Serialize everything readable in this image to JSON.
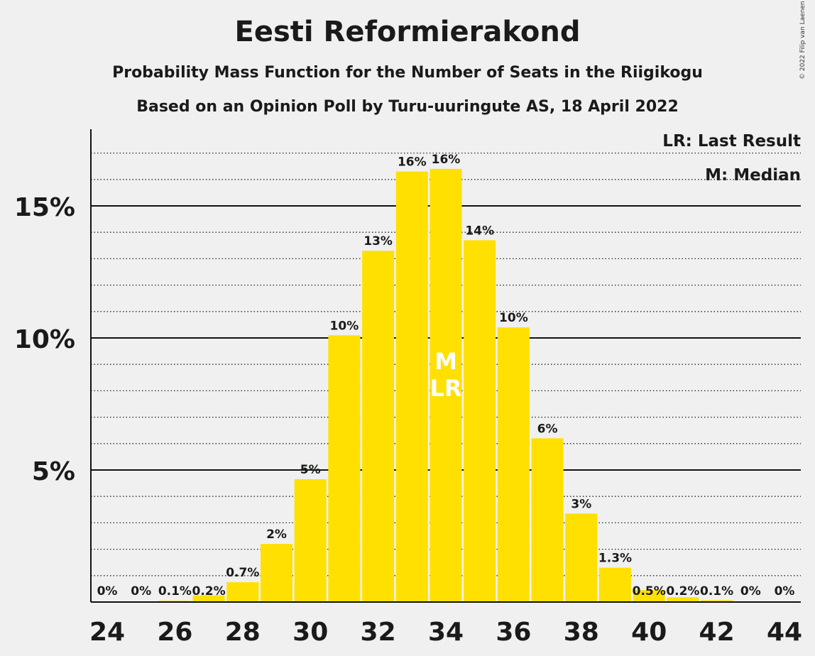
{
  "title": "Eesti Reformierakond",
  "subtitle": "Probability Mass Function for the Number of Seats in the Riigikogu",
  "source": "Based on an Opinion Poll by Turu-uuringute AS, 18 April 2022",
  "copyright": "© 2022 Filip van Laenen",
  "legend": {
    "last_result": "LR: Last Result",
    "median": "M: Median"
  },
  "colors": {
    "bar": "#FFE000",
    "axis": "#1a1a1a",
    "background": "#f0f0f0"
  },
  "chart_data": {
    "type": "bar",
    "x": [
      24,
      25,
      26,
      27,
      28,
      29,
      30,
      31,
      32,
      33,
      34,
      35,
      36,
      37,
      38,
      39,
      40,
      41,
      42,
      43,
      44
    ],
    "values": [
      0,
      0,
      0.05,
      0.25,
      0.75,
      2.2,
      4.65,
      10.1,
      13.3,
      16.3,
      16.4,
      13.7,
      10.4,
      6.2,
      3.35,
      1.3,
      0.45,
      0.18,
      0.07,
      0,
      0
    ],
    "data_labels": [
      "0%",
      "0%",
      "0.1%",
      "0.2%",
      "0.7%",
      "2%",
      "5%",
      "10%",
      "13%",
      "16%",
      "16%",
      "14%",
      "10%",
      "6%",
      "3%",
      "1.3%",
      "0.5%",
      "0.2%",
      "0.1%",
      "0%",
      "0%"
    ],
    "x_ticks": [
      24,
      26,
      28,
      30,
      32,
      34,
      36,
      38,
      40,
      42,
      44
    ],
    "y_ticks": [
      5,
      10,
      15
    ],
    "y_tick_labels": [
      "5%",
      "10%",
      "15%"
    ],
    "ylim": [
      0,
      17.9
    ],
    "median": 34,
    "last_result": 34,
    "median_marker": "M",
    "last_result_marker": "LR"
  }
}
